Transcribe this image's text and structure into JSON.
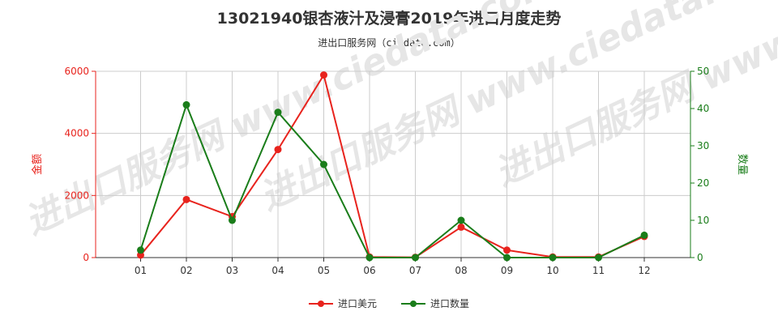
{
  "title": "13021940银杏液汁及浸膏2019年进口月度走势",
  "subtitle": "进出口服务网（ciedata.com）",
  "watermark": "进出口服务网 www.ciedata.com",
  "colors": {
    "amount": "#e8231d",
    "quantity": "#1a7d1a",
    "grid": "#cccccc",
    "axis": "#333333"
  },
  "chart_data": {
    "type": "line",
    "categories": [
      "01",
      "02",
      "03",
      "04",
      "05",
      "06",
      "07",
      "08",
      "09",
      "10",
      "11",
      "12"
    ],
    "y_left": {
      "label": "金额",
      "ticks": [
        "0",
        "2000",
        "4000",
        "6000"
      ],
      "ylim": [
        0,
        6000
      ]
    },
    "y_right": {
      "label": "数量",
      "ticks": [
        "0",
        "10",
        "20",
        "30",
        "40",
        "50"
      ],
      "ylim": [
        0,
        50
      ]
    },
    "series": [
      {
        "name": "进口美元",
        "axis": "left",
        "color": "#e8231d",
        "values": [
          80,
          1870,
          1320,
          3480,
          5880,
          20,
          10,
          980,
          240,
          20,
          20,
          680
        ]
      },
      {
        "name": "进口数量",
        "axis": "right",
        "color": "#1a7d1a",
        "values": [
          2,
          41,
          10,
          39,
          25,
          0,
          0,
          10,
          0,
          0,
          0,
          6
        ]
      }
    ],
    "grid": true,
    "legend_position": "bottom-center"
  }
}
